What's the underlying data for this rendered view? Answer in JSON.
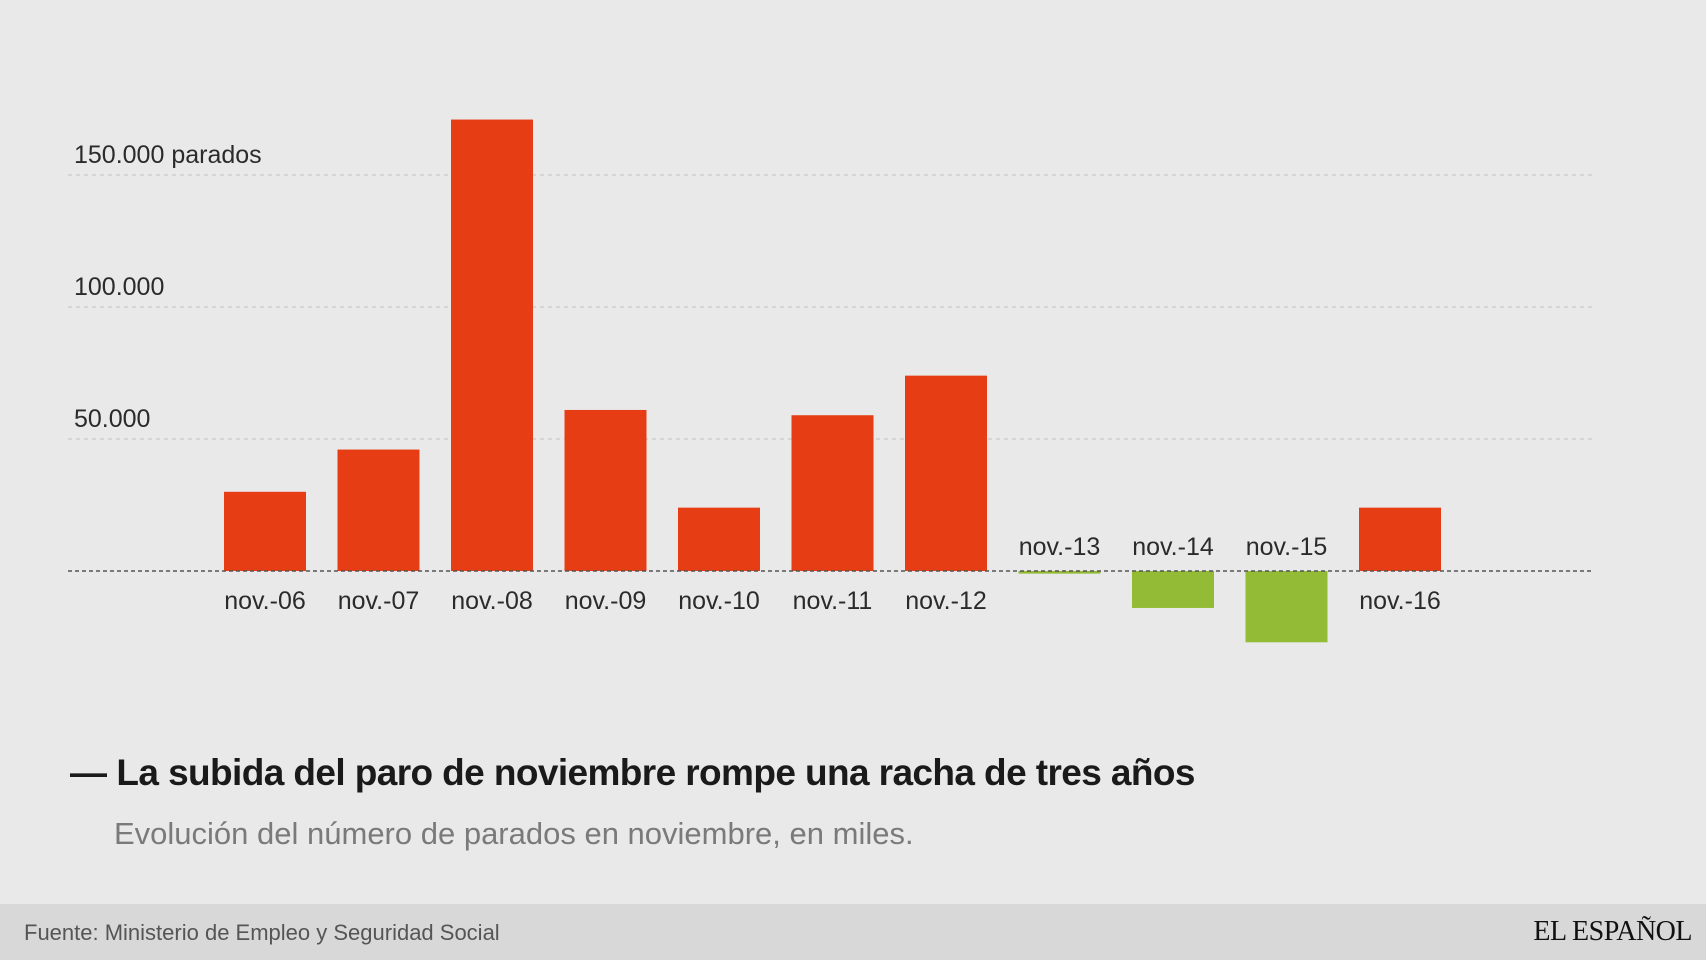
{
  "chart_data": {
    "type": "bar",
    "title": "La subida del paro de noviembre rompe una racha de tres años",
    "subtitle": "Evolución del número de parados en noviembre, en miles.",
    "title_prefix": "—",
    "categories": [
      "nov.-06",
      "nov.-07",
      "nov.-08",
      "nov.-09",
      "nov.-10",
      "nov.-11",
      "nov.-12",
      "nov.-13",
      "nov.-14",
      "nov.-15",
      "nov.-16"
    ],
    "values": [
      30000,
      46000,
      171000,
      61000,
      24000,
      59000,
      74000,
      -1000,
      -14000,
      -27000,
      24000
    ],
    "ylim": [
      -30000,
      175000
    ],
    "yticks": [
      {
        "value": 50000,
        "label": "50.000"
      },
      {
        "value": 100000,
        "label": "100.000"
      },
      {
        "value": 150000,
        "label": "150.000 parados"
      }
    ],
    "grid": true,
    "xlabel": "",
    "ylabel": "",
    "colors": {
      "positive": "#e63d14",
      "negative": "#93bb35",
      "grid": "#c9c9c9",
      "baseline": "#555555"
    }
  },
  "footer": {
    "source": "Fuente: Ministerio de Empleo y Seguridad Social",
    "brand": "EL ESPAÑOL"
  }
}
